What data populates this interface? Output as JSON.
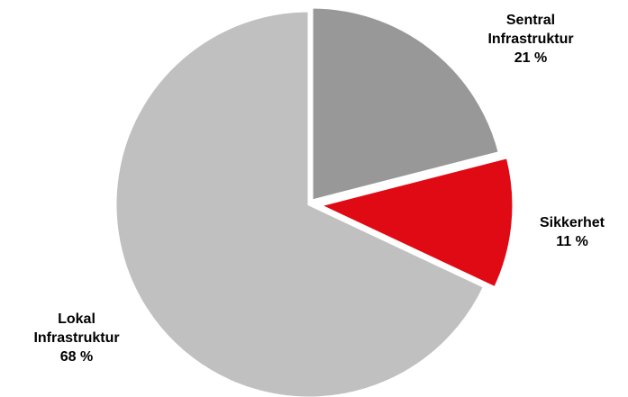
{
  "chart_data": {
    "type": "pie",
    "slices": [
      {
        "label_line1": "Sentral",
        "label_line2": "Infrastruktur",
        "value_text": "21 %",
        "value": 21,
        "color": "#989898"
      },
      {
        "label_line1": "Sikkerhet",
        "label_line2": "",
        "value_text": "11 %",
        "value": 11,
        "color": "#e00a14"
      },
      {
        "label_line1": "Lokal",
        "label_line2": "Infrastruktur",
        "value_text": "68 %",
        "value": 68,
        "color": "#c0c0c0"
      }
    ],
    "legend": "none"
  }
}
